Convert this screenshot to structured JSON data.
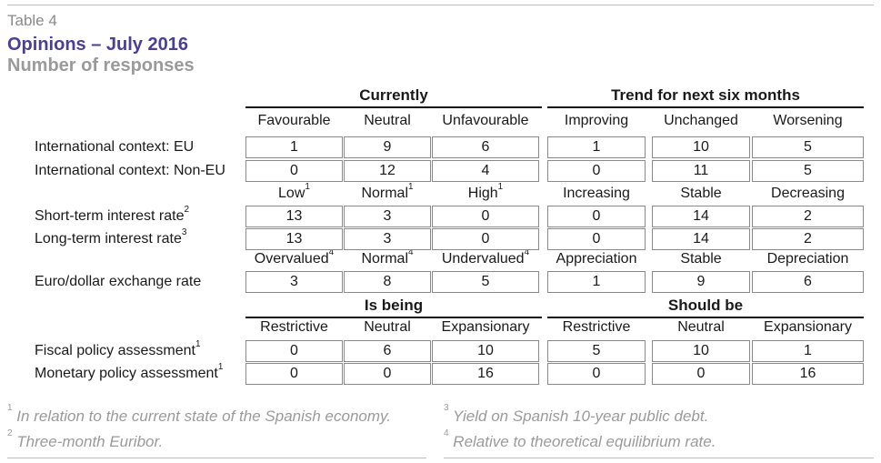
{
  "table_label": "Table 4",
  "title": "Opinions – July 2016",
  "subtitle": "Number of responses",
  "group_heads": {
    "currently": "Currently",
    "trend": "Trend for next six months",
    "is_being": "Is being",
    "should_be": "Should be"
  },
  "col_heads": {
    "r1": [
      "Favourable",
      "Neutral",
      "Unfavourable",
      "Improving",
      "Unchanged",
      "Worsening"
    ],
    "r2": [
      {
        "t": "Low",
        "s": "1"
      },
      {
        "t": "Normal",
        "s": "1"
      },
      {
        "t": "High",
        "s": "1"
      },
      {
        "t": "Increasing",
        "s": ""
      },
      {
        "t": "Stable",
        "s": ""
      },
      {
        "t": "Decreasing",
        "s": ""
      }
    ],
    "r3": [
      {
        "t": "Overvalued",
        "s": "4"
      },
      {
        "t": "Normal",
        "s": "4"
      },
      {
        "t": "Undervalued",
        "s": "4"
      },
      {
        "t": "Appreciation",
        "s": ""
      },
      {
        "t": "Stable",
        "s": ""
      },
      {
        "t": "Depreciation",
        "s": ""
      }
    ],
    "r4": [
      "Restrictive",
      "Neutral",
      "Expansionary",
      "Restrictive",
      "Neutral",
      "Expansionary"
    ]
  },
  "rows": [
    {
      "label": "International context: EU",
      "sup": "",
      "values": [
        "1",
        "9",
        "6",
        "1",
        "10",
        "5"
      ]
    },
    {
      "label": "International context: Non-EU",
      "sup": "",
      "values": [
        "0",
        "12",
        "4",
        "0",
        "11",
        "5"
      ]
    },
    {
      "label": "Short-term interest rate",
      "sup": "2",
      "values": [
        "13",
        "3",
        "0",
        "0",
        "14",
        "2"
      ]
    },
    {
      "label": "Long-term interest rate",
      "sup": "3",
      "values": [
        "13",
        "3",
        "0",
        "0",
        "14",
        "2"
      ]
    },
    {
      "label": "Euro/dollar exchange rate",
      "sup": "",
      "values": [
        "3",
        "8",
        "5",
        "1",
        "9",
        "6"
      ]
    },
    {
      "label": "Fiscal policy assessment",
      "sup": "1",
      "values": [
        "0",
        "6",
        "10",
        "5",
        "10",
        "1"
      ]
    },
    {
      "label": "Monetary policy assessment",
      "sup": "1",
      "values": [
        "0",
        "0",
        "16",
        "0",
        "0",
        "16"
      ]
    }
  ],
  "footnotes": [
    {
      "num": "1",
      "text": "In relation to the current state of the Spanish economy."
    },
    {
      "num": "2",
      "text": "Three-month Euribor."
    },
    {
      "num": "3",
      "text": "Yield on Spanish 10-year public debt."
    },
    {
      "num": "4",
      "text": "Relative to theoretical equilibrium rate."
    }
  ]
}
